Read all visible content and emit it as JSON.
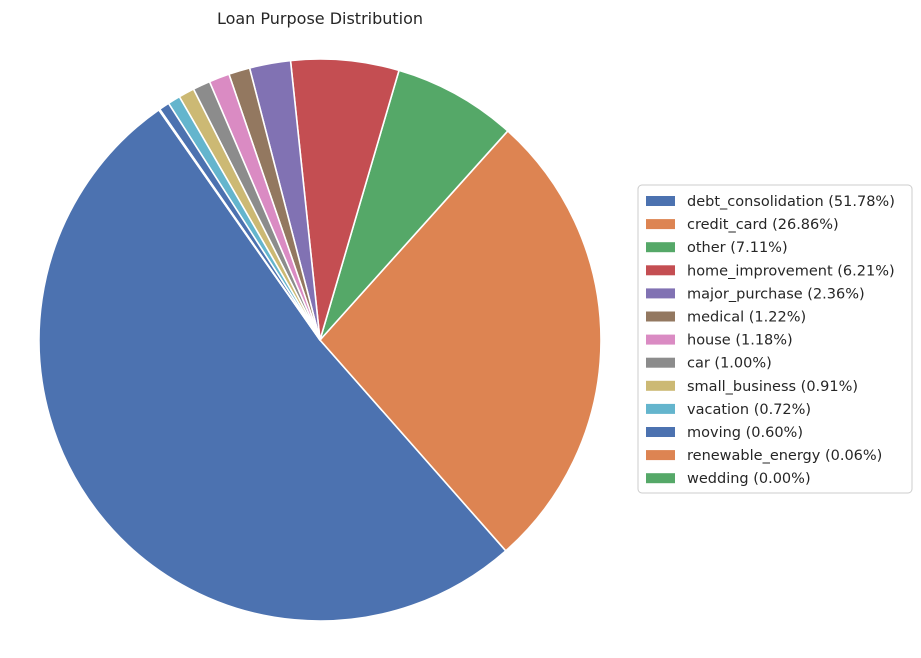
{
  "chart_data": {
    "type": "pie",
    "title": "Loan Purpose Distribution",
    "start_angle_deg": 125,
    "direction": "counterclockwise",
    "legend_position": "right",
    "slices": [
      {
        "label": "debt_consolidation (51.78%)",
        "value": 51.78,
        "color": "#4c72b0"
      },
      {
        "label": "credit_card (26.86%)",
        "value": 26.86,
        "color": "#dd8452"
      },
      {
        "label": "other (7.11%)",
        "value": 7.11,
        "color": "#55a868"
      },
      {
        "label": "home_improvement (6.21%)",
        "value": 6.21,
        "color": "#c44e52"
      },
      {
        "label": "major_purchase (2.36%)",
        "value": 2.36,
        "color": "#8172b3"
      },
      {
        "label": "medical (1.22%)",
        "value": 1.22,
        "color": "#937860"
      },
      {
        "label": "house (1.18%)",
        "value": 1.18,
        "color": "#da8bc3"
      },
      {
        "label": "car (1.00%)",
        "value": 1.0,
        "color": "#8c8c8c"
      },
      {
        "label": "small_business (0.91%)",
        "value": 0.91,
        "color": "#ccb974"
      },
      {
        "label": "vacation (0.72%)",
        "value": 0.72,
        "color": "#64b5cd"
      },
      {
        "label": "moving (0.60%)",
        "value": 0.6,
        "color": "#4c72b0"
      },
      {
        "label": "renewable_energy (0.06%)",
        "value": 0.06,
        "color": "#dd8452"
      },
      {
        "label": "wedding (0.00%)",
        "value": 0.0,
        "color": "#55a868"
      }
    ]
  }
}
